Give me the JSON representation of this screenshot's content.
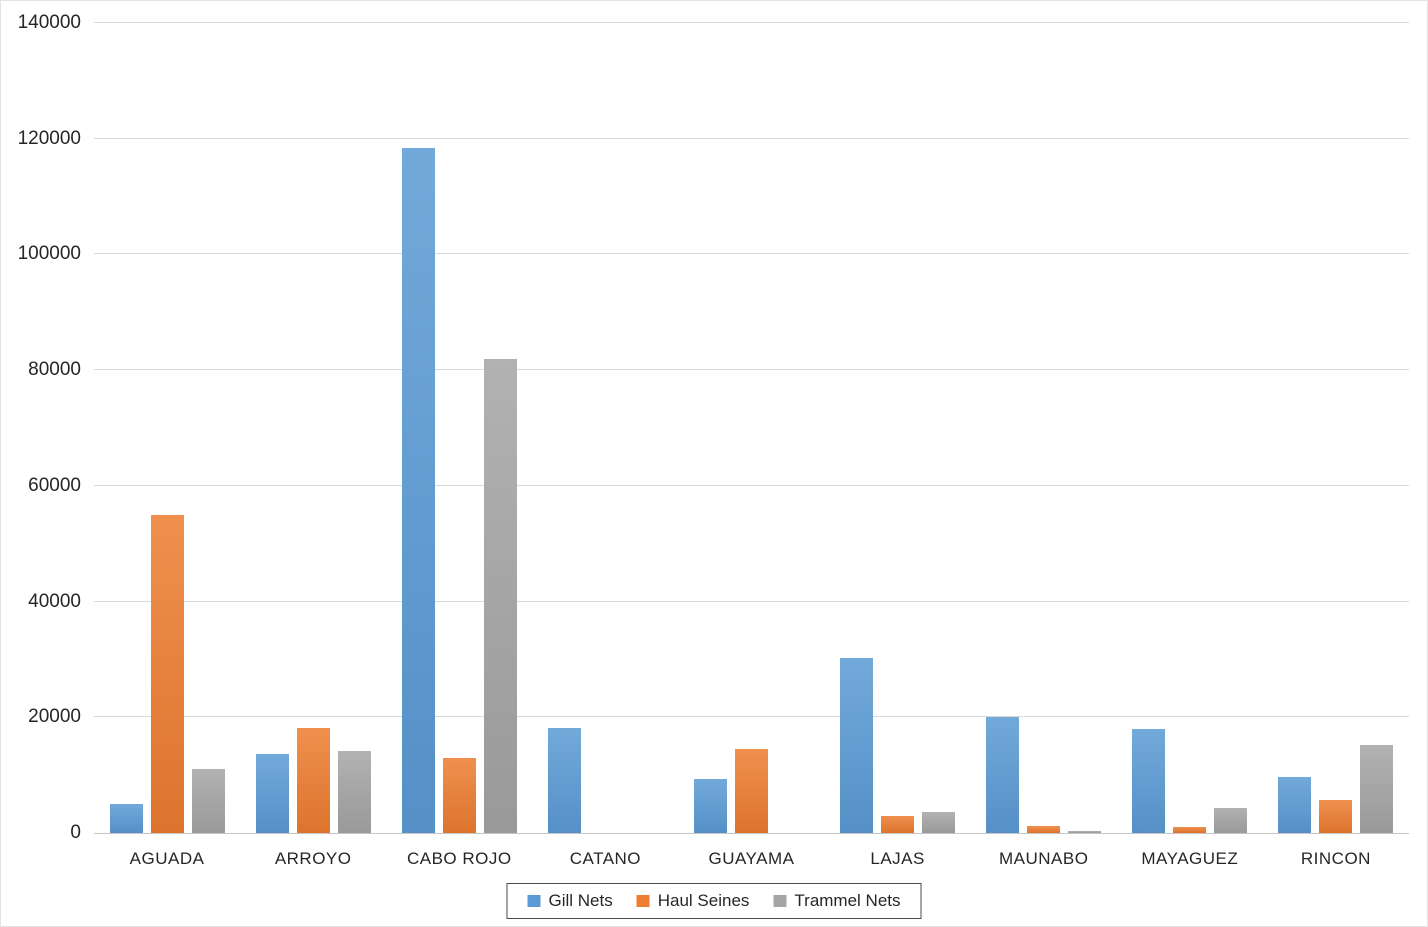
{
  "chart_data": {
    "type": "bar",
    "title": "",
    "xlabel": "",
    "ylabel": "",
    "categories": [
      "AGUADA",
      "ARROYO",
      "CABO ROJO",
      "CATANO",
      "GUAYAMA",
      "LAJAS",
      "MAUNABO",
      "MAYAGUEZ",
      "RINCON"
    ],
    "series": [
      {
        "name": "Gill Nets",
        "color": "#5B9BD5",
        "values": [
          5000,
          13600,
          118400,
          18200,
          9400,
          30300,
          20100,
          18000,
          9700
        ]
      },
      {
        "name": "Haul Seines",
        "color": "#ED7D31",
        "values": [
          55000,
          18200,
          12900,
          0,
          14600,
          2900,
          1300,
          1100,
          5700
        ]
      },
      {
        "name": "Trammel Nets",
        "color": "#A5A5A5",
        "values": [
          11000,
          14100,
          82000,
          0,
          0,
          3600,
          400,
          4400,
          15300
        ]
      }
    ],
    "ylim": [
      0,
      140000
    ],
    "ytick_step": 20000,
    "yticks": [
      "0",
      "20000",
      "40000",
      "60000",
      "80000",
      "100000",
      "120000",
      "140000"
    ],
    "grid": true,
    "gridline_color": "#D9D9D9",
    "axis_line_color": "#C6C6C6",
    "legend_position": "bottom",
    "legend_border_color": "#4D4D4D"
  }
}
